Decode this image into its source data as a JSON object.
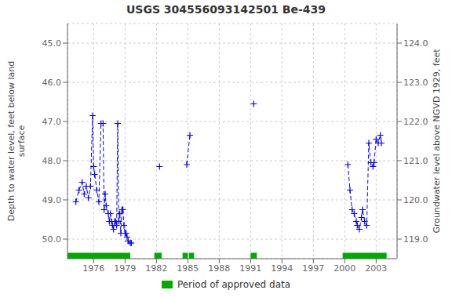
{
  "chart_data": {
    "type": "line",
    "title": "USGS 304556093142501 Be-439",
    "ylabel": "Depth to water level, feet below land\nsurface",
    "y2label": "Groundwater level above NGVD 1929, feet",
    "xlim": [
      1973.5,
      2005.0
    ],
    "xticks": [
      1976,
      1979,
      1982,
      1985,
      1988,
      1991,
      1994,
      1997,
      2000,
      2003
    ],
    "ylim": [
      50.5,
      44.5
    ],
    "yticks": [
      {
        "value": 45.0,
        "label": "45.0"
      },
      {
        "value": 46.0,
        "label": "46.0"
      },
      {
        "value": 47.0,
        "label": "47.0"
      },
      {
        "value": 48.0,
        "label": "48.0"
      },
      {
        "value": 49.0,
        "label": "49.0"
      },
      {
        "value": 50.0,
        "label": "50.0"
      }
    ],
    "y2lim": [
      118.5,
      124.5
    ],
    "y2ticks": [
      {
        "value": 124.0,
        "label": "124.0"
      },
      {
        "value": 123.0,
        "label": "123.0"
      },
      {
        "value": 122.0,
        "label": "122.0"
      },
      {
        "value": 121.0,
        "label": "121.0"
      },
      {
        "value": 120.0,
        "label": "120.0"
      },
      {
        "value": 119.0,
        "label": "119.0"
      }
    ],
    "grid": true,
    "legend": "bottom",
    "series": [
      {
        "color": "#0000ff",
        "marker": "plus",
        "line_style": "dashed",
        "x": [
          1974.3,
          1974.6,
          1974.9,
          1975.1,
          1975.3,
          1975.5,
          1975.7,
          1975.9,
          1976.0,
          1976.1,
          1976.3,
          1976.5,
          1976.7,
          1976.9,
          1977.0,
          1977.1,
          1977.2,
          1977.4,
          1977.5,
          1977.6,
          1977.7,
          1977.8,
          1977.9,
          1978.0,
          1978.1,
          1978.2,
          1978.3,
          1978.4,
          1978.5,
          1978.6,
          1978.7,
          1978.8,
          1978.9,
          1979.0,
          1979.1,
          1979.2,
          1979.3,
          1979.5,
          1979.6
        ],
        "values": [
          49.05,
          48.75,
          48.55,
          48.85,
          48.65,
          48.95,
          48.65,
          46.85,
          48.15,
          48.35,
          48.75,
          49.05,
          47.05,
          47.05,
          49.25,
          48.85,
          49.15,
          49.35,
          49.55,
          49.35,
          49.55,
          49.65,
          49.75,
          49.55,
          49.55,
          49.65,
          47.05,
          49.55,
          49.35,
          49.85,
          49.25,
          49.25,
          49.65,
          49.85,
          49.85,
          49.95,
          50.05,
          50.1,
          50.1
        ]
      },
      {
        "color": "#0000ff",
        "marker": "plus",
        "line_style": "none",
        "x": [
          1982.3
        ],
        "values": [
          48.15
        ]
      },
      {
        "color": "#0000ff",
        "marker": "plus",
        "line_style": "dashed",
        "x": [
          1984.9,
          1985.2
        ],
        "values": [
          48.1,
          47.35
        ]
      },
      {
        "color": "#0000ff",
        "marker": "plus",
        "line_style": "none",
        "x": [
          1991.3
        ],
        "values": [
          46.55
        ]
      },
      {
        "color": "#0000ff",
        "marker": "plus",
        "line_style": "dashed",
        "x": [
          2000.3,
          2000.5,
          2000.7,
          2000.9,
          2001.1,
          2001.2,
          2001.4,
          2001.6,
          2001.7,
          2001.9,
          2002.1,
          2002.3,
          2002.5,
          2002.7,
          2002.8,
          2003.0,
          2003.2,
          2003.4,
          2003.5
        ],
        "values": [
          48.1,
          48.75,
          49.25,
          49.35,
          49.55,
          49.65,
          49.75,
          49.45,
          49.25,
          49.55,
          49.65,
          47.55,
          48.05,
          48.15,
          48.05,
          47.45,
          47.55,
          47.35,
          47.55
        ]
      },
      {
        "name": "Period of approved data",
        "type": "span",
        "color": "#00aa00",
        "values": [
          [
            1973.5,
            1979.5
          ],
          [
            1981.8,
            1982.5
          ],
          [
            1984.5,
            1985.0
          ],
          [
            1985.1,
            1985.6
          ],
          [
            1991.0,
            1991.6
          ],
          [
            1999.8,
            2004.0
          ]
        ]
      }
    ]
  }
}
